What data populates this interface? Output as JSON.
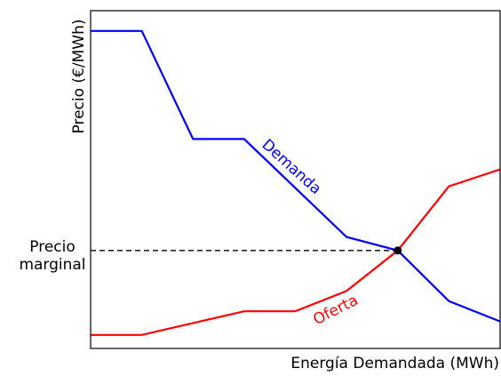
{
  "chart_data": {
    "type": "line",
    "xlabel": "Energía Demandada (MWh)",
    "ylabel": "Precio (€/MWh)",
    "xlim": [
      0,
      8
    ],
    "ylim": [
      0,
      10
    ],
    "xticks_shown": false,
    "yticks_shown": false,
    "grid": false,
    "series": [
      {
        "name": "Demanda",
        "color": "#0000ff",
        "x": [
          0,
          1,
          2,
          3,
          5,
          6,
          7,
          8
        ],
        "y": [
          9.4,
          9.4,
          6.2,
          6.2,
          3.3,
          2.9,
          1.4,
          0.8
        ]
      },
      {
        "name": "Oferta",
        "color": "#ff0000",
        "x": [
          0,
          1,
          3,
          4,
          5,
          6,
          7,
          8
        ],
        "y": [
          0.4,
          0.4,
          1.1,
          1.1,
          1.7,
          2.9,
          4.8,
          5.3
        ]
      }
    ],
    "equilibrium": {
      "x": 6,
      "y": 2.9,
      "label_line1": "Precio",
      "label_line2": "marginal"
    }
  }
}
